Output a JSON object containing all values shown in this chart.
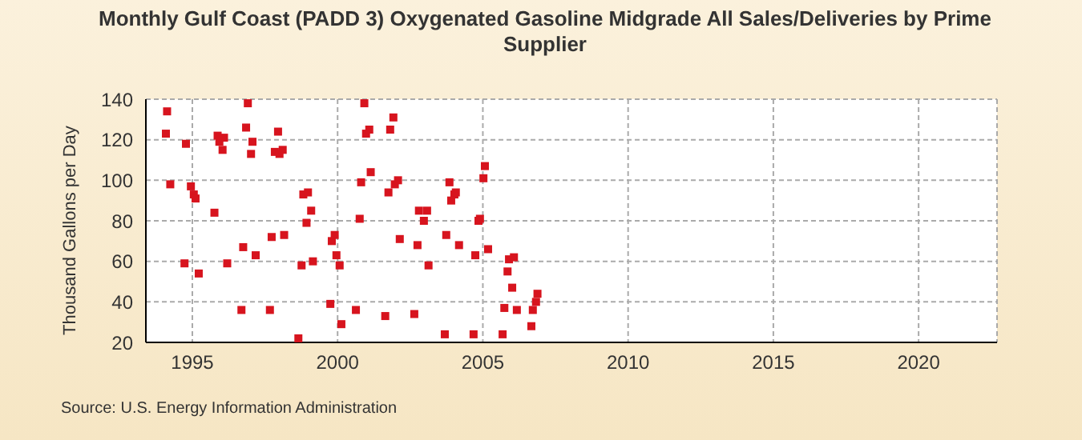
{
  "chart_data": {
    "type": "scatter",
    "title": "Monthly Gulf Coast (PADD 3) Oxygenated Gasoline Midgrade All Sales/Deliveries by Prime Supplier",
    "ylabel": "Thousand Gallons per Day",
    "annotations": [
      "Source: U.S. Energy Information Administration"
    ],
    "series": [
      {
        "color": "#d7141e",
        "x": [
          1994.09,
          1994.13,
          1994.24,
          1994.73,
          1994.78,
          1994.95,
          1995.05,
          1995.11,
          1995.22,
          1995.76,
          1995.87,
          1995.93,
          1996.04,
          1996.09,
          1996.2,
          1996.69,
          1996.75,
          1996.85,
          1996.91,
          1997.02,
          1997.07,
          1997.18,
          1997.67,
          1997.73,
          1997.84,
          1997.95,
          1998.0,
          1998.11,
          1998.16,
          1998.65,
          1998.76,
          1998.82,
          1998.93,
          1998.98,
          1999.09,
          1999.15,
          1999.75,
          1999.8,
          1999.9,
          1999.96,
          2000.07,
          2000.13,
          2000.63,
          2000.76,
          2000.81,
          2000.92,
          2000.98,
          2001.09,
          2001.14,
          2001.64,
          2001.75,
          2001.81,
          2001.92,
          2001.97,
          2002.08,
          2002.14,
          2002.64,
          2002.75,
          2002.8,
          2002.91,
          2002.97,
          2003.08,
          2003.13,
          2003.69,
          2003.74,
          2003.85,
          2003.91,
          2004.02,
          2004.07,
          2004.18,
          2004.68,
          2004.74,
          2004.85,
          2004.9,
          2005.02,
          2005.07,
          2005.18,
          2005.68,
          2005.74,
          2005.85,
          2005.9,
          2006.01,
          2006.07,
          2006.17,
          2006.67,
          2006.72,
          2006.83,
          2006.88
        ],
        "values": [
          123,
          134,
          98,
          59,
          118,
          97,
          93,
          91,
          54,
          84,
          122,
          119,
          115,
          121,
          59,
          36,
          67,
          126,
          138,
          113,
          119,
          63,
          36,
          72,
          114,
          124,
          113,
          115,
          73,
          22,
          58,
          93,
          79,
          94,
          85,
          60,
          39,
          70,
          73,
          63,
          58,
          29,
          36,
          81,
          99,
          138,
          123,
          125,
          104,
          33,
          94,
          125,
          131,
          98,
          100,
          71,
          34,
          68,
          85,
          null,
          80,
          85,
          58,
          24,
          73,
          99,
          90,
          93,
          94,
          68,
          24,
          63,
          80,
          81,
          101,
          107,
          66,
          24,
          37,
          55,
          61,
          47,
          62,
          36,
          28,
          36,
          40,
          44
        ]
      }
    ],
    "xlim": [
      1993.4,
      2022.7
    ],
    "xticks": [
      1995,
      2000,
      2005,
      2010,
      2015,
      2020
    ],
    "ylim": [
      20,
      140
    ],
    "yticks": [
      20,
      40,
      60,
      80,
      100,
      120,
      140
    ],
    "grid": true,
    "marker": "square"
  }
}
